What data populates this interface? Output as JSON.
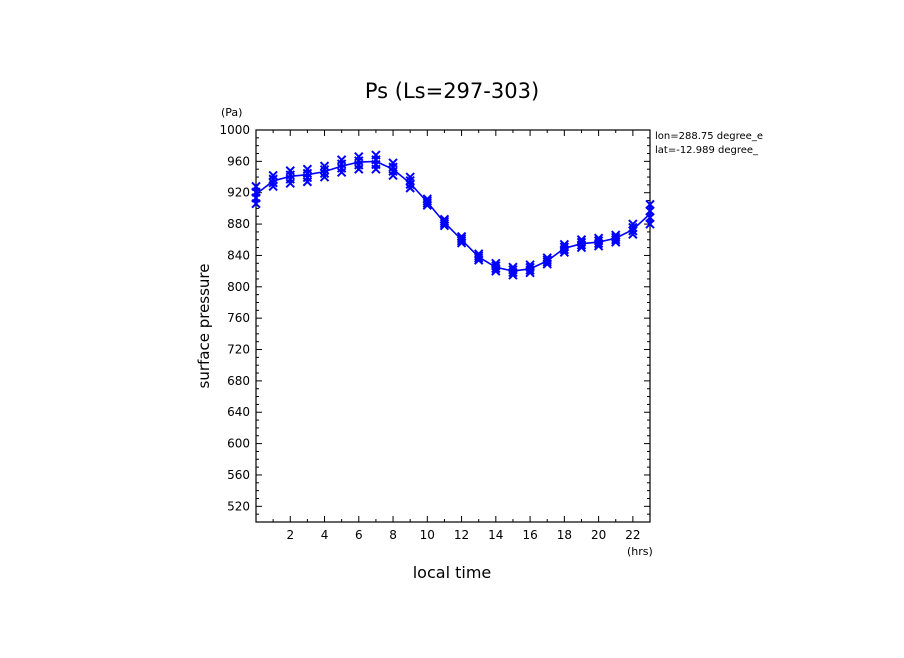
{
  "chart_data": {
    "type": "line",
    "title": "Ps (Ls=297-303)",
    "xlabel": "local time",
    "ylabel": "surface pressure",
    "xunit": "(hrs)",
    "yunit": "(Pa)",
    "annotations": [
      "lon=288.75 degree_e",
      "lat=-12.989 degree_"
    ],
    "xlim": [
      0,
      23
    ],
    "ylim": [
      500,
      1000
    ],
    "xticks": [
      2,
      4,
      6,
      8,
      10,
      12,
      14,
      16,
      18,
      20,
      22
    ],
    "yticks": [
      520,
      560,
      600,
      640,
      680,
      720,
      760,
      800,
      840,
      880,
      920,
      960,
      1000
    ],
    "grid": false,
    "legend": "none",
    "line_color": "#0000ff",
    "marker": "x",
    "series": [
      {
        "x": [
          0,
          1,
          2,
          3,
          4,
          5,
          6,
          7,
          8,
          9,
          10,
          11,
          12,
          13,
          14,
          15,
          16,
          17,
          18,
          19,
          20,
          21,
          22,
          23
        ],
        "values": [
          918,
          935,
          941,
          943,
          947,
          954,
          959,
          960,
          950,
          932,
          908,
          882,
          860,
          838,
          825,
          820,
          823,
          833,
          849,
          855,
          857,
          862,
          873,
          893
        ],
        "spread": [
          [
            906,
            928
          ],
          [
            928,
            942
          ],
          [
            932,
            948
          ],
          [
            934,
            950
          ],
          [
            940,
            954
          ],
          [
            946,
            962
          ],
          [
            950,
            966
          ],
          [
            950,
            968
          ],
          [
            942,
            958
          ],
          [
            926,
            940
          ],
          [
            904,
            912
          ],
          [
            878,
            886
          ],
          [
            856,
            864
          ],
          [
            834,
            842
          ],
          [
            820,
            830
          ],
          [
            815,
            825
          ],
          [
            818,
            828
          ],
          [
            829,
            837
          ],
          [
            844,
            854
          ],
          [
            850,
            860
          ],
          [
            852,
            862
          ],
          [
            857,
            866
          ],
          [
            867,
            880
          ],
          [
            880,
            905
          ]
        ]
      }
    ]
  }
}
